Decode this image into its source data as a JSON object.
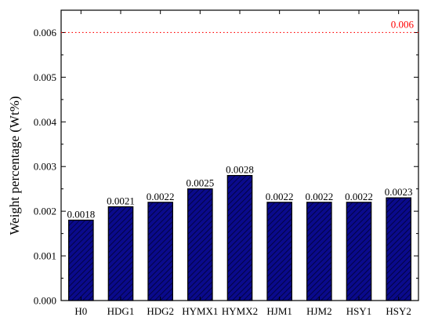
{
  "chart_data": {
    "type": "bar",
    "title": "",
    "xlabel": "",
    "ylabel": "Weight percentage (Wt%)",
    "ylim": [
      0,
      0.0065
    ],
    "yticks": [
      "0.000",
      "0.001",
      "0.002",
      "0.003",
      "0.004",
      "0.005",
      "0.006"
    ],
    "categories": [
      "H0",
      "HDG1",
      "HDG2",
      "HYMX1",
      "HYMX2",
      "HJM1",
      "HJM2",
      "HSY1",
      "HSY2"
    ],
    "values": [
      0.0018,
      0.0021,
      0.0022,
      0.0025,
      0.0028,
      0.0022,
      0.0022,
      0.0022,
      0.0023
    ],
    "data_labels": [
      "0.0018",
      "0.0021",
      "0.0022",
      "0.0025",
      "0.0028",
      "0.0022",
      "0.0022",
      "0.0022",
      "0.0023"
    ],
    "reference_line": {
      "value": 0.006,
      "label": "0.006",
      "color": "#ff0000",
      "style": "dotted"
    },
    "bar_fill": "#0a0a8c",
    "bar_pattern": "diagonal-hatch",
    "bar_stroke": "#000000",
    "grid": false,
    "legend": "none"
  }
}
